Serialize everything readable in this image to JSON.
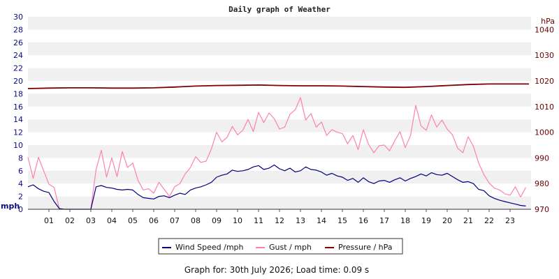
{
  "chart_data": {
    "type": "line",
    "title": "Daily graph of Weather",
    "left_axis": {
      "unit": "mph",
      "range": [
        0,
        30
      ],
      "ticks": [
        "0",
        "2",
        "4",
        "6",
        "8",
        "10",
        "12",
        "14",
        "16",
        "18",
        "20",
        "22",
        "24",
        "26",
        "28",
        "30"
      ]
    },
    "right_axis": {
      "unit": "hPa",
      "range": [
        970,
        1045
      ],
      "ticks": [
        "970",
        "980",
        "990",
        "1000",
        "1010",
        "1020",
        "1030",
        "1040"
      ]
    },
    "x_axis": {
      "range": [
        0,
        24
      ],
      "ticks": [
        "01",
        "02",
        "03",
        "04",
        "05",
        "06",
        "07",
        "08",
        "09",
        "10",
        "11",
        "12",
        "13",
        "14",
        "15",
        "16",
        "17",
        "18",
        "19",
        "20",
        "21",
        "22",
        "23"
      ]
    },
    "grid": "horizontal-bands",
    "legend_position": "bottom",
    "colors": {
      "wind": "#000080",
      "gust": "#ff80b0",
      "pressure": "#800000",
      "band": "#f0f0f0"
    },
    "series": [
      {
        "name": "Wind Speed /mph",
        "axis": "left",
        "x": [
          0.0,
          0.25,
          0.5,
          0.75,
          1.0,
          1.25,
          1.5,
          1.75,
          2.0,
          2.25,
          2.5,
          2.75,
          3.0,
          3.25,
          3.5,
          3.75,
          4.0,
          4.25,
          4.5,
          4.75,
          5.0,
          5.25,
          5.5,
          5.75,
          6.0,
          6.25,
          6.5,
          6.75,
          7.0,
          7.25,
          7.5,
          7.75,
          8.0,
          8.25,
          8.5,
          8.75,
          9.0,
          9.25,
          9.5,
          9.75,
          10.0,
          10.25,
          10.5,
          10.75,
          11.0,
          11.25,
          11.5,
          11.75,
          12.0,
          12.25,
          12.5,
          12.75,
          13.0,
          13.25,
          13.5,
          13.75,
          14.0,
          14.25,
          14.5,
          14.75,
          15.0,
          15.25,
          15.5,
          15.75,
          16.0,
          16.25,
          16.5,
          16.75,
          17.0,
          17.25,
          17.5,
          17.75,
          18.0,
          18.25,
          18.5,
          18.75,
          19.0,
          19.25,
          19.5,
          19.75,
          20.0,
          20.25,
          20.5,
          20.75,
          21.0,
          21.25,
          21.5,
          21.75,
          22.0,
          22.25,
          22.5,
          22.75,
          23.0,
          23.25,
          23.5,
          23.75
        ],
        "y": [
          3.5,
          3.8,
          3.2,
          2.8,
          2.6,
          1.2,
          0.1,
          0.0,
          0.0,
          0.0,
          0.0,
          0.0,
          0.0,
          3.5,
          3.7,
          3.4,
          3.3,
          3.1,
          3.0,
          3.1,
          3.0,
          2.3,
          1.8,
          1.7,
          1.6,
          2.0,
          2.1,
          1.8,
          2.2,
          2.5,
          2.3,
          3.0,
          3.3,
          3.5,
          3.8,
          4.2,
          5.0,
          5.3,
          5.5,
          6.1,
          5.9,
          6.0,
          6.2,
          6.6,
          6.8,
          6.2,
          6.4,
          6.9,
          6.3,
          6.0,
          6.4,
          5.8,
          6.0,
          6.6,
          6.2,
          6.1,
          5.8,
          5.3,
          5.6,
          5.2,
          5.0,
          4.5,
          4.8,
          4.2,
          4.9,
          4.3,
          4.0,
          4.4,
          4.5,
          4.2,
          4.6,
          4.9,
          4.4,
          4.8,
          5.1,
          5.5,
          5.2,
          5.7,
          5.4,
          5.3,
          5.6,
          5.1,
          4.6,
          4.2,
          4.3,
          4.0,
          3.1,
          2.9,
          2.1,
          1.7,
          1.4,
          1.2,
          1.0,
          0.8,
          0.6,
          0.5
        ]
      },
      {
        "name": "Gust / mph",
        "axis": "left",
        "x": [
          0.0,
          0.25,
          0.5,
          0.75,
          1.0,
          1.25,
          1.5,
          1.75,
          2.0,
          2.25,
          2.5,
          2.75,
          3.0,
          3.25,
          3.5,
          3.75,
          4.0,
          4.25,
          4.5,
          4.75,
          5.0,
          5.25,
          5.5,
          5.75,
          6.0,
          6.25,
          6.5,
          6.75,
          7.0,
          7.25,
          7.5,
          7.75,
          8.0,
          8.25,
          8.5,
          8.75,
          9.0,
          9.25,
          9.5,
          9.75,
          10.0,
          10.25,
          10.5,
          10.75,
          11.0,
          11.25,
          11.5,
          11.75,
          12.0,
          12.25,
          12.5,
          12.75,
          13.0,
          13.25,
          13.5,
          13.75,
          14.0,
          14.25,
          14.5,
          14.75,
          15.0,
          15.25,
          15.5,
          15.75,
          16.0,
          16.25,
          16.5,
          16.75,
          17.0,
          17.25,
          17.5,
          17.75,
          18.0,
          18.25,
          18.5,
          18.75,
          19.0,
          19.25,
          19.5,
          19.75,
          20.0,
          20.25,
          20.5,
          20.75,
          21.0,
          21.25,
          21.5,
          21.75,
          22.0,
          22.25,
          22.5,
          22.75,
          23.0,
          23.25,
          23.5,
          23.75
        ],
        "y": [
          8.1,
          4.8,
          8.1,
          6.0,
          3.9,
          3.4,
          0.0,
          0.0,
          0.0,
          0.0,
          0.0,
          0.0,
          0.0,
          6.2,
          9.2,
          5.0,
          8.0,
          5.1,
          9.0,
          6.5,
          7.2,
          4.5,
          3.0,
          3.2,
          2.5,
          4.2,
          3.1,
          2.0,
          3.5,
          4.0,
          5.5,
          6.5,
          8.2,
          7.3,
          7.5,
          9.4,
          12.0,
          10.5,
          11.2,
          12.9,
          11.6,
          12.3,
          14.0,
          12.1,
          15.1,
          13.5,
          15.0,
          14.1,
          12.5,
          12.8,
          14.8,
          15.5,
          17.4,
          13.9,
          14.9,
          12.8,
          13.6,
          11.5,
          12.4,
          12.0,
          11.8,
          10.2,
          11.5,
          9.3,
          12.4,
          10.1,
          8.8,
          9.9,
          10.0,
          9.1,
          10.7,
          12.1,
          9.6,
          11.5,
          16.2,
          13.0,
          12.3,
          14.7,
          12.8,
          13.9,
          12.5,
          11.6,
          9.5,
          8.8,
          11.3,
          9.8,
          7.2,
          5.4,
          4.1,
          3.3,
          3.0,
          2.4,
          2.2,
          3.5,
          1.9,
          3.4
        ]
      },
      {
        "name": "Pressure / hPa",
        "axis": "right",
        "x": [
          0.0,
          1.0,
          2.0,
          3.0,
          4.0,
          5.0,
          6.0,
          7.0,
          8.0,
          9.0,
          10.0,
          11.0,
          12.0,
          13.0,
          14.0,
          15.0,
          16.0,
          17.0,
          18.0,
          19.0,
          20.0,
          21.0,
          22.0,
          23.0,
          23.9
        ],
        "y": [
          1017.0,
          1017.2,
          1017.3,
          1017.3,
          1017.2,
          1017.2,
          1017.3,
          1017.6,
          1018.0,
          1018.2,
          1018.3,
          1018.4,
          1018.2,
          1018.1,
          1018.1,
          1018.0,
          1017.8,
          1017.6,
          1017.5,
          1017.8,
          1018.2,
          1018.6,
          1018.8,
          1018.8,
          1018.8
        ]
      }
    ],
    "legend": [
      {
        "label": "Wind Speed /mph",
        "color": "#000080"
      },
      {
        "label": "Gust / mph",
        "color": "#ff80b0"
      },
      {
        "label": "Pressure / hPa",
        "color": "#800000"
      }
    ]
  },
  "footer": "Graph for: 30th July 2026; Load time: 0.09 s"
}
